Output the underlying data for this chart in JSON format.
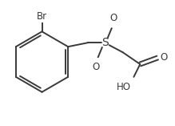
{
  "background_color": "#ffffff",
  "line_color": "#3a3a3a",
  "text_color": "#3a3a3a",
  "font_size": 8.5,
  "line_width": 1.4,
  "figsize": [
    2.19,
    1.57
  ],
  "dpi": 100,
  "br_label": "Br",
  "s_label": "S",
  "o_up_label": "O",
  "o_down_label": "O",
  "ho_label": "HO",
  "o_label": "O"
}
